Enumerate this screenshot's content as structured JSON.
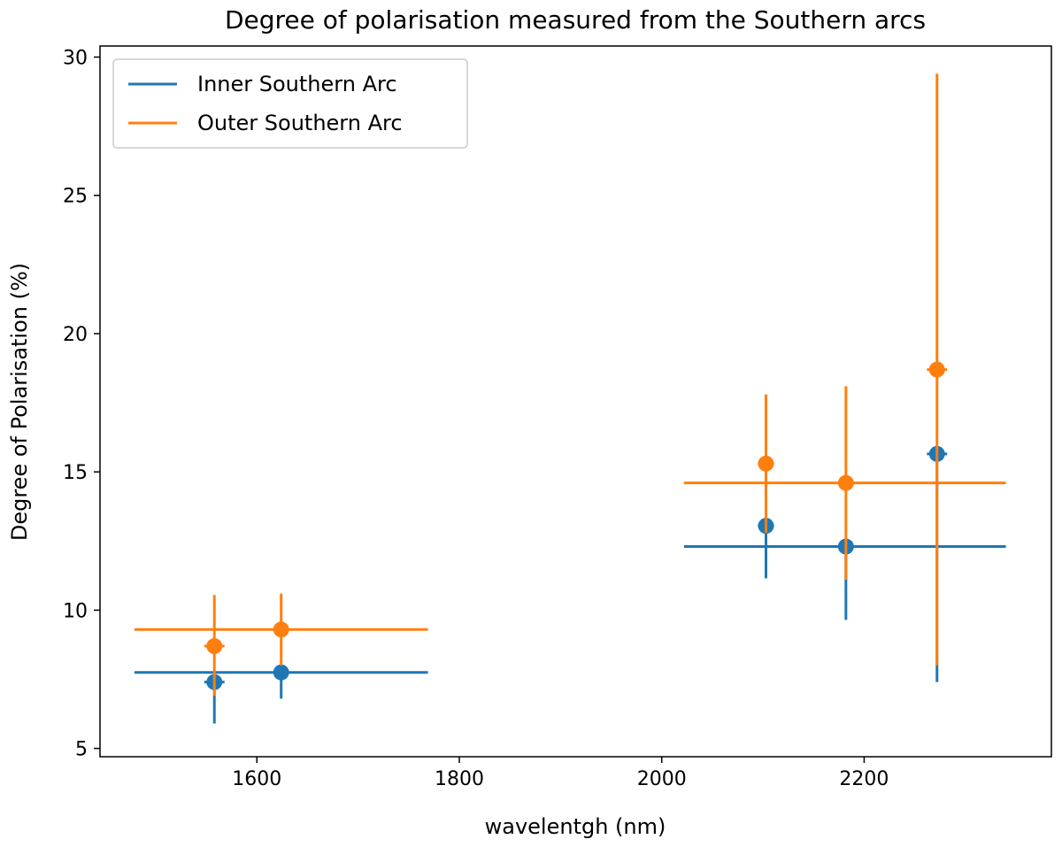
{
  "chart_data": {
    "type": "scatter",
    "title": "Degree of polarisation measured from the Southern arcs",
    "xlabel": "wavelentgh (nm)",
    "ylabel": "Degree of Polarisation (%)",
    "xlim": [
      1445,
      2385
    ],
    "ylim": [
      4.7,
      30.4
    ],
    "xticks": [
      1600,
      1800,
      2000,
      2200
    ],
    "yticks": [
      5,
      10,
      15,
      20,
      25,
      30
    ],
    "legend_position": "top-left",
    "series": [
      {
        "name": "Inner Southern Arc",
        "color": "#1f77b4",
        "points": [
          {
            "x": 1558,
            "y": 7.4,
            "xerr": [
              10,
              10
            ],
            "yerr": [
              1.5,
              0.0
            ]
          },
          {
            "x": 1624,
            "y": 7.75,
            "xerr": [
              145,
              145
            ],
            "yerr": [
              0.95,
              0.0
            ]
          },
          {
            "x": 2103,
            "y": 13.05,
            "xerr": [
              8,
              8
            ],
            "yerr": [
              1.9,
              0.0
            ]
          },
          {
            "x": 2182,
            "y": 12.3,
            "xerr": [
              160,
              158
            ],
            "yerr": [
              2.65,
              0.0
            ]
          },
          {
            "x": 2272,
            "y": 15.65,
            "xerr": [
              10,
              10
            ],
            "yerr": [
              8.25,
              0.0
            ]
          }
        ]
      },
      {
        "name": "Outer Southern Arc",
        "color": "#ff7f0e",
        "points": [
          {
            "x": 1558,
            "y": 8.7,
            "xerr": [
              10,
              10
            ],
            "yerr": [
              1.8,
              1.85
            ]
          },
          {
            "x": 1624,
            "y": 9.3,
            "xerr": [
              145,
              145
            ],
            "yerr": [
              1.3,
              1.3
            ]
          },
          {
            "x": 2103,
            "y": 15.3,
            "xerr": [
              8,
              8
            ],
            "yerr": [
              2.5,
              2.5
            ]
          },
          {
            "x": 2182,
            "y": 14.6,
            "xerr": [
              160,
              158
            ],
            "yerr": [
              3.5,
              3.5
            ]
          },
          {
            "x": 2272,
            "y": 18.7,
            "xerr": [
              10,
              10
            ],
            "yerr": [
              10.7,
              10.7
            ]
          }
        ]
      }
    ]
  }
}
